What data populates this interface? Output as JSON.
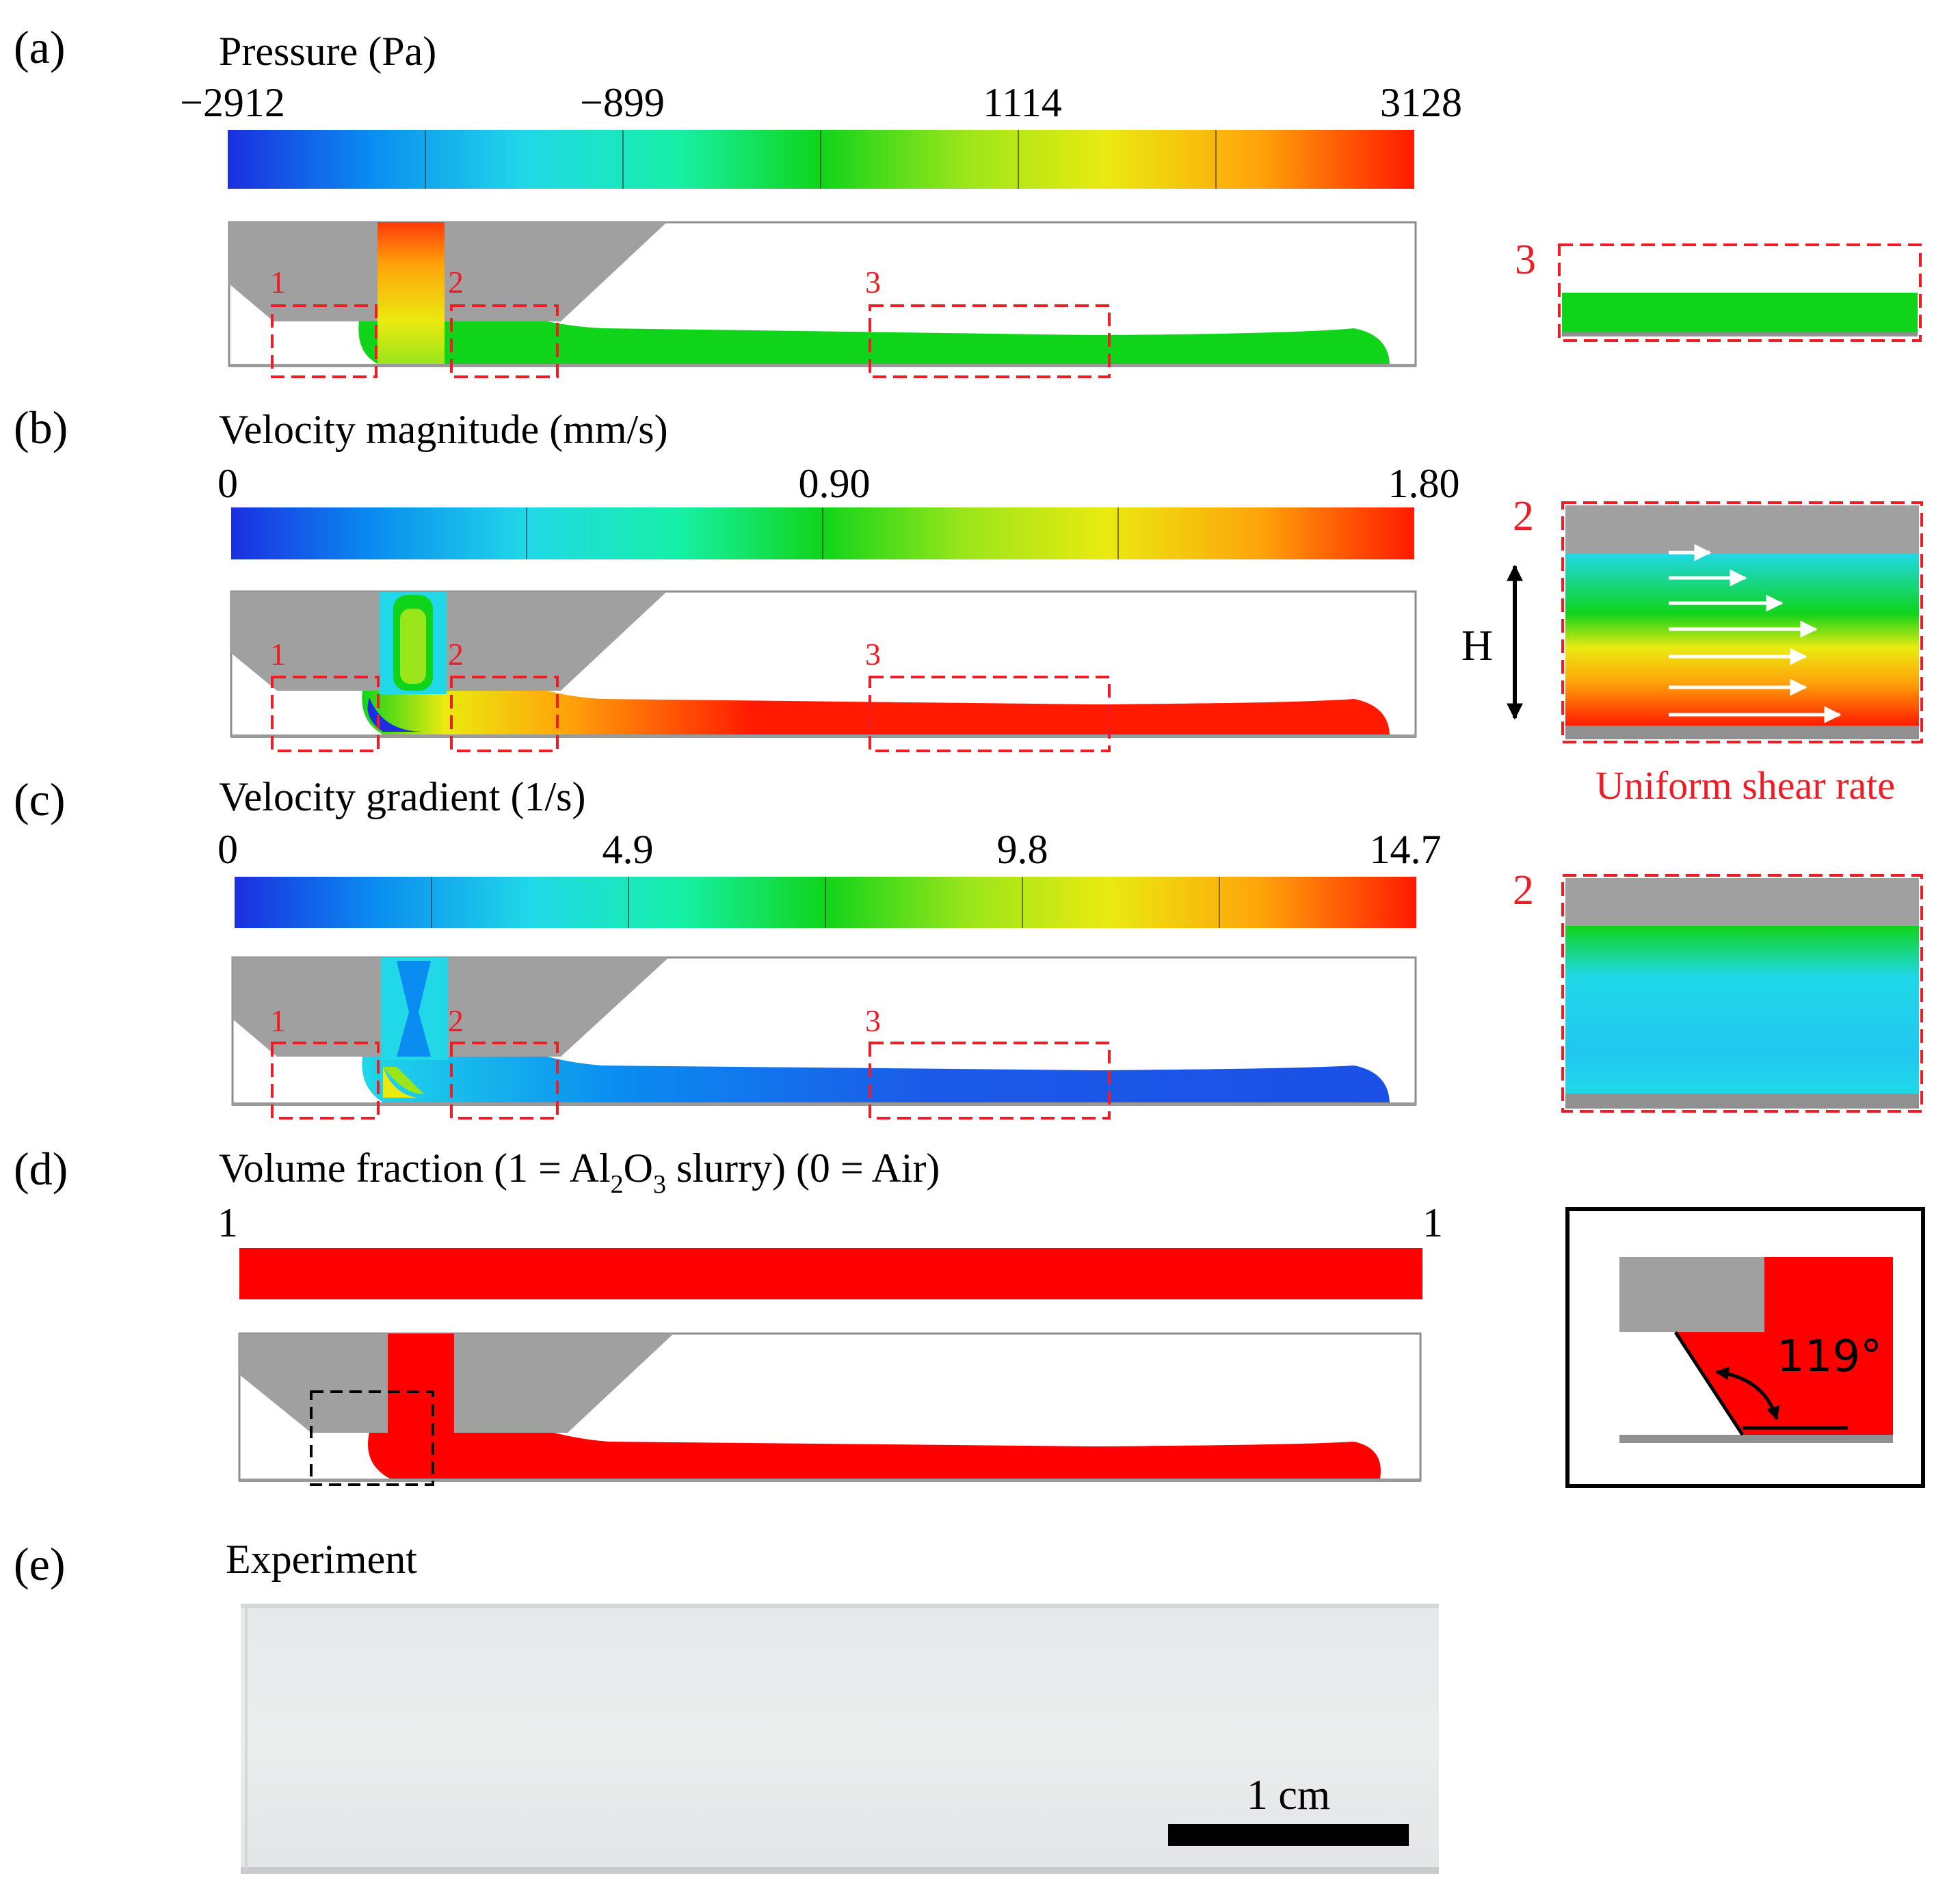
{
  "colors": {
    "wall_gray": "#a0a0a0",
    "annotation_red": "#ee1c24",
    "black": "#000000",
    "rainbow": [
      "#1b2fe0",
      "#0a8cf0",
      "#20d8e8",
      "#16f0a6",
      "#10d41a",
      "#9ae61a",
      "#eaea10",
      "#ffa30a",
      "#ff1a00"
    ]
  },
  "panels": {
    "a": {
      "label": "(a)",
      "title": "Pressure (Pa)",
      "ticks": [
        "−2912",
        "−899",
        "1114",
        "3128"
      ],
      "regions": [
        "1",
        "2",
        "3"
      ],
      "inset_number": "3"
    },
    "b": {
      "label": "(b)",
      "title": "Velocity magnitude (mm/s)",
      "ticks": [
        "0",
        "0.90",
        "1.80"
      ],
      "regions": [
        "1",
        "2",
        "3"
      ],
      "inset_number": "2",
      "height_label": "H",
      "inset_caption": "Uniform shear rate"
    },
    "c": {
      "label": "(c)",
      "title": "Velocity gradient (1/s)",
      "ticks": [
        "0",
        "4.9",
        "9.8",
        "14.7"
      ],
      "regions": [
        "1",
        "2",
        "3"
      ],
      "inset_number": "2"
    },
    "d": {
      "label": "(d)",
      "title_prefix": "Volume fraction (1 = Al",
      "sub_2": "2",
      "title_mid": "O",
      "sub_3": "3",
      "title_suffix": " slurry) (0 = Air)",
      "ticks": [
        "1",
        "1"
      ],
      "contact_angle": "119°"
    },
    "e": {
      "label": "(e)",
      "title": "Experiment",
      "scale_label": "1 cm"
    }
  }
}
